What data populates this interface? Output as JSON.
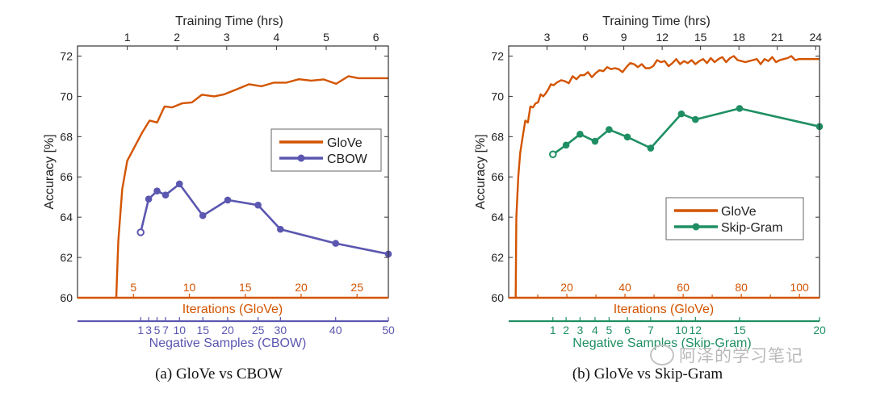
{
  "colors": {
    "glove": "#d35400",
    "cbow": "#5b57b0",
    "skipgram": "#1f8f63",
    "axis": "#333333",
    "text": "#222222"
  },
  "watermark": "阿泽的学习笔记",
  "chart_data": [
    {
      "id": "a",
      "type": "line",
      "caption": "(a)  GloVe vs CBOW",
      "ylabel": "Accuracy [%]",
      "ylim": [
        60,
        72.5
      ],
      "yticks": [
        60,
        62,
        64,
        66,
        68,
        70,
        72
      ],
      "top_axis": {
        "label": "Training Time (hrs)",
        "ticks": [
          1,
          2,
          3,
          4,
          5,
          6
        ],
        "range": [
          0,
          6.25
        ]
      },
      "bottom_axis": {
        "label": "Iterations (GloVe)",
        "ticks": [
          5,
          10,
          15,
          20,
          25
        ],
        "range": [
          0,
          27.8
        ]
      },
      "second_axis": {
        "label": "Negative Samples (CBOW)",
        "ticks": [
          "1",
          "3",
          "5",
          "7",
          "10",
          "15",
          "20",
          "25",
          "30",
          "40",
          "50"
        ],
        "tick_positions_hrs": [
          1.27,
          1.43,
          1.6,
          1.77,
          2.05,
          2.52,
          3.02,
          3.63,
          4.08,
          5.19,
          6.25
        ]
      },
      "legend": {
        "position": "center-right",
        "entries": [
          "GloVe",
          "CBOW"
        ]
      },
      "series": [
        {
          "name": "GloVe",
          "x_hrs": [
            0.78,
            0.82,
            0.9,
            1.0,
            1.15,
            1.3,
            1.45,
            1.6,
            1.75,
            1.9,
            2.1,
            2.3,
            2.5,
            2.75,
            2.95,
            3.2,
            3.45,
            3.7,
            3.95,
            4.2,
            4.45,
            4.7,
            4.95,
            5.2,
            5.45,
            5.65,
            5.9,
            6.1,
            6.25
          ],
          "y": [
            60.0,
            62.8,
            65.4,
            66.8,
            67.5,
            68.2,
            68.8,
            68.7,
            69.5,
            69.45,
            69.65,
            69.7,
            70.08,
            70.0,
            70.1,
            70.35,
            70.6,
            70.5,
            70.68,
            70.68,
            70.85,
            70.78,
            70.84,
            70.62,
            71.0,
            70.9,
            70.9,
            70.9,
            70.9
          ]
        },
        {
          "name": "CBOW",
          "x_hrs": [
            1.27,
            1.43,
            1.6,
            1.77,
            2.05,
            2.52,
            3.02,
            3.63,
            4.08,
            5.19,
            6.25
          ],
          "y": [
            63.25,
            64.9,
            65.3,
            65.1,
            65.65,
            64.08,
            64.85,
            64.6,
            63.4,
            62.7,
            62.17
          ]
        }
      ]
    },
    {
      "id": "b",
      "type": "line",
      "caption": "(b)  GloVe vs Skip-Gram",
      "ylabel": "Accuracy [%]",
      "ylim": [
        60,
        72.5
      ],
      "yticks": [
        60,
        62,
        64,
        66,
        68,
        70,
        72
      ],
      "top_axis": {
        "label": "Training Time (hrs)",
        "ticks": [
          3,
          6,
          9,
          12,
          15,
          18,
          21,
          24
        ],
        "range": [
          0,
          24.3
        ]
      },
      "bottom_axis": {
        "label": "Iterations (GloVe)",
        "ticks": [
          20,
          40,
          60,
          80,
          100
        ],
        "range": [
          0,
          106.9
        ]
      },
      "second_axis": {
        "label": "Negative Samples (Skip-Gram)",
        "ticks": [
          "1",
          "2",
          "3",
          "4",
          "5",
          "6",
          "7",
          "10",
          "12",
          "15",
          "20"
        ],
        "tick_positions_hrs": [
          3.46,
          4.49,
          5.58,
          6.75,
          7.85,
          9.28,
          11.1,
          13.5,
          14.6,
          18.05,
          24.3
        ]
      },
      "legend": {
        "position": "bottom-right",
        "entries": [
          "GloVe",
          "Skip-Gram"
        ]
      },
      "series": [
        {
          "name": "GloVe",
          "x_hrs": [
            0.55,
            0.6,
            0.75,
            0.9,
            1.1,
            1.3,
            1.5,
            1.7,
            1.9,
            2.1,
            2.3,
            2.5,
            2.7,
            2.9,
            3.1,
            3.3,
            3.5,
            3.8,
            4.1,
            4.4,
            4.7,
            5.0,
            5.3,
            5.6,
            5.9,
            6.2,
            6.5,
            6.8,
            7.1,
            7.4,
            7.7,
            8.0,
            8.3,
            8.6,
            8.9,
            9.2,
            9.5,
            9.8,
            10.1,
            10.4,
            10.7,
            11.0,
            11.3,
            11.6,
            11.9,
            12.2,
            12.5,
            12.8,
            13.1,
            13.4,
            13.7,
            14.0,
            14.3,
            14.6,
            14.9,
            15.2,
            15.5,
            15.8,
            16.1,
            16.4,
            16.7,
            17.0,
            17.3,
            17.6,
            17.9,
            18.2,
            18.5,
            18.8,
            19.1,
            19.4,
            19.7,
            20.0,
            20.3,
            20.6,
            20.9,
            21.2,
            21.5,
            21.8,
            22.1,
            22.4,
            22.7,
            23.0,
            23.3,
            23.6,
            23.9,
            24.3
          ],
          "y": [
            60.0,
            64.0,
            66.0,
            67.2,
            68.0,
            68.8,
            68.7,
            69.5,
            69.45,
            69.65,
            69.7,
            70.1,
            70.0,
            70.15,
            70.35,
            70.6,
            70.55,
            70.7,
            70.8,
            70.75,
            70.65,
            71.0,
            70.85,
            71.05,
            71.05,
            71.2,
            70.95,
            71.15,
            71.3,
            71.25,
            71.45,
            71.35,
            71.4,
            71.35,
            71.2,
            71.45,
            71.65,
            71.6,
            71.45,
            71.6,
            71.4,
            71.4,
            71.5,
            71.8,
            71.7,
            71.75,
            71.5,
            71.65,
            71.85,
            71.6,
            71.75,
            71.65,
            71.8,
            71.6,
            71.75,
            71.85,
            71.65,
            71.9,
            71.7,
            71.85,
            71.95,
            71.7,
            71.9,
            72.0,
            71.8,
            71.75,
            71.7,
            71.75,
            71.8,
            71.85,
            71.6,
            71.85,
            71.75,
            71.95,
            71.7,
            71.8,
            71.85,
            71.9,
            72.0,
            71.8,
            71.85,
            71.85,
            71.85,
            71.85,
            71.85,
            71.85
          ],
          "note": "noisy convergence curve, approximated"
        },
        {
          "name": "Skip-Gram",
          "x_hrs": [
            3.46,
            4.49,
            5.58,
            6.75,
            7.85,
            9.28,
            11.1,
            13.5,
            14.6,
            18.05,
            24.3
          ],
          "y": [
            67.12,
            67.58,
            68.12,
            67.77,
            68.35,
            67.98,
            67.43,
            69.13,
            68.85,
            69.4,
            68.5
          ]
        }
      ]
    }
  ]
}
